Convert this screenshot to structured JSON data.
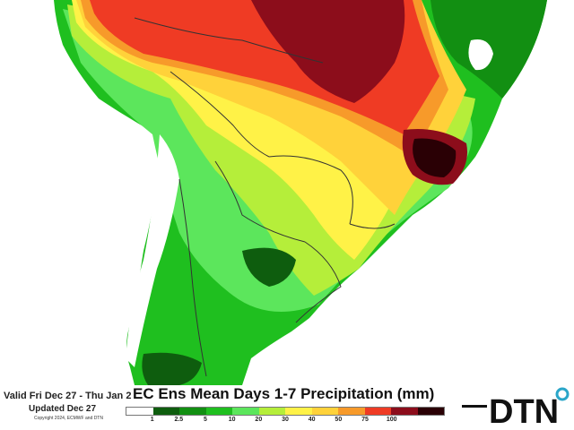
{
  "footer": {
    "valid_text": "Valid Fri Dec 27 - Thu Jan 2",
    "updated_text": "Updated Dec 27",
    "copyright_text": "Copyright 2024, ECMWF and DTN",
    "title": "EC Ens Mean Days 1-7 Precipitation (mm)",
    "logo_text": "DTN"
  },
  "legend": {
    "ticks": [
      "1",
      "2.5",
      "5",
      "10",
      "20",
      "30",
      "40",
      "50",
      "75",
      "100"
    ],
    "colors": [
      "#ffffff",
      "#0e5d0e",
      "#128f12",
      "#1fbf1f",
      "#5ce65c",
      "#b5ee3a",
      "#fff247",
      "#ffd23a",
      "#f79a2a",
      "#ef3b24",
      "#8c0d1b",
      "#2a0005"
    ]
  },
  "colors": {
    "ocean": "#ffffff",
    "country_border": "#333333",
    "dry_land": "#ffffff",
    "logo_accent": "#2aa6c9"
  }
}
